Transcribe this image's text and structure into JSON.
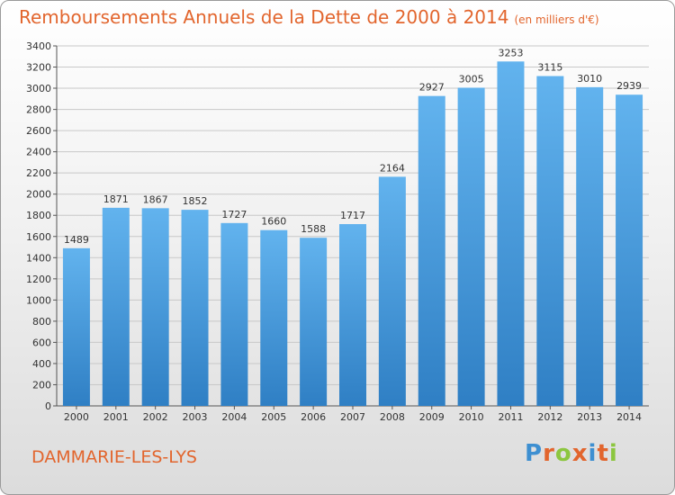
{
  "header": {
    "title": "Remboursements Annuels de la Dette de 2000 à 2014",
    "unit": "(en milliers d'€)"
  },
  "footer": {
    "city": "DAMMARIE-LES-LYS",
    "logo_letters": [
      "P",
      "r",
      "o",
      "x",
      "i",
      "t",
      "i"
    ],
    "logo_colors": [
      "#3d8fd1",
      "#e2652d",
      "#8cc63f",
      "#e2652d",
      "#3d8fd1",
      "#e2652d",
      "#8cc63f"
    ]
  },
  "colors": {
    "bar_light": "#62b3ee",
    "bar_dark": "#2f7fc4",
    "title": "#e2652d",
    "grid": "#c8c8c8"
  },
  "chart_data": {
    "type": "bar",
    "title": "Remboursements Annuels de la Dette de 2000 à 2014",
    "xlabel": "",
    "ylabel": "(en milliers d'€)",
    "categories": [
      "2000",
      "2001",
      "2002",
      "2003",
      "2004",
      "2005",
      "2006",
      "2007",
      "2008",
      "2009",
      "2010",
      "2011",
      "2012",
      "2013",
      "2014"
    ],
    "values": [
      1489,
      1871,
      1867,
      1852,
      1727,
      1660,
      1588,
      1717,
      2164,
      2927,
      3005,
      3253,
      3115,
      3010,
      2939
    ],
    "ylim": [
      0,
      3400
    ],
    "yticks": [
      "0",
      "200",
      "400",
      "600",
      "800",
      "1000",
      "1200",
      "1400",
      "1600",
      "1800",
      "2000",
      "2200",
      "2400",
      "2600",
      "2800",
      "3000",
      "3200",
      "3400"
    ],
    "grid": true
  }
}
